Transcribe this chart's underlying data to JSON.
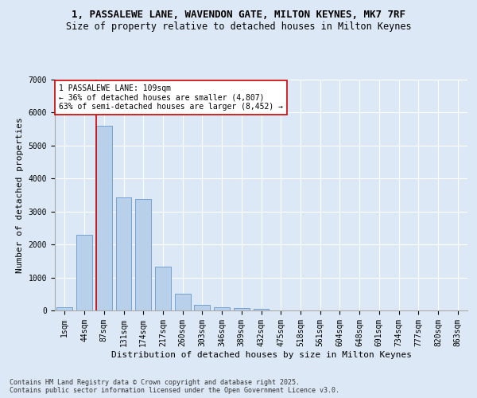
{
  "title_line1": "1, PASSALEWE LANE, WAVENDON GATE, MILTON KEYNES, MK7 7RF",
  "title_line2": "Size of property relative to detached houses in Milton Keynes",
  "xlabel": "Distribution of detached houses by size in Milton Keynes",
  "ylabel": "Number of detached properties",
  "categories": [
    "1sqm",
    "44sqm",
    "87sqm",
    "131sqm",
    "174sqm",
    "217sqm",
    "260sqm",
    "303sqm",
    "346sqm",
    "389sqm",
    "432sqm",
    "475sqm",
    "518sqm",
    "561sqm",
    "604sqm",
    "648sqm",
    "691sqm",
    "734sqm",
    "777sqm",
    "820sqm",
    "863sqm"
  ],
  "values": [
    100,
    2300,
    5600,
    3420,
    3380,
    1330,
    500,
    175,
    90,
    75,
    40,
    0,
    0,
    0,
    0,
    0,
    0,
    0,
    0,
    0,
    0
  ],
  "bar_color": "#b8d0ea",
  "bar_edge_color": "#6699cc",
  "background_color": "#dce8f5",
  "grid_color": "#ffffff",
  "vline_x_index": 2,
  "vline_color": "#cc0000",
  "annotation_text": "1 PASSALEWE LANE: 109sqm\n← 36% of detached houses are smaller (4,807)\n63% of semi-detached houses are larger (8,452) →",
  "annotation_box_color": "#ffffff",
  "annotation_box_edge": "#cc0000",
  "ylim": [
    0,
    7000
  ],
  "yticks": [
    0,
    1000,
    2000,
    3000,
    4000,
    5000,
    6000,
    7000
  ],
  "fig_bg_color": "#dce8f5",
  "footer": "Contains HM Land Registry data © Crown copyright and database right 2025.\nContains public sector information licensed under the Open Government Licence v3.0.",
  "title_fontsize": 9,
  "subtitle_fontsize": 8.5,
  "axis_label_fontsize": 8,
  "tick_fontsize": 7,
  "annotation_fontsize": 7,
  "footer_fontsize": 6
}
